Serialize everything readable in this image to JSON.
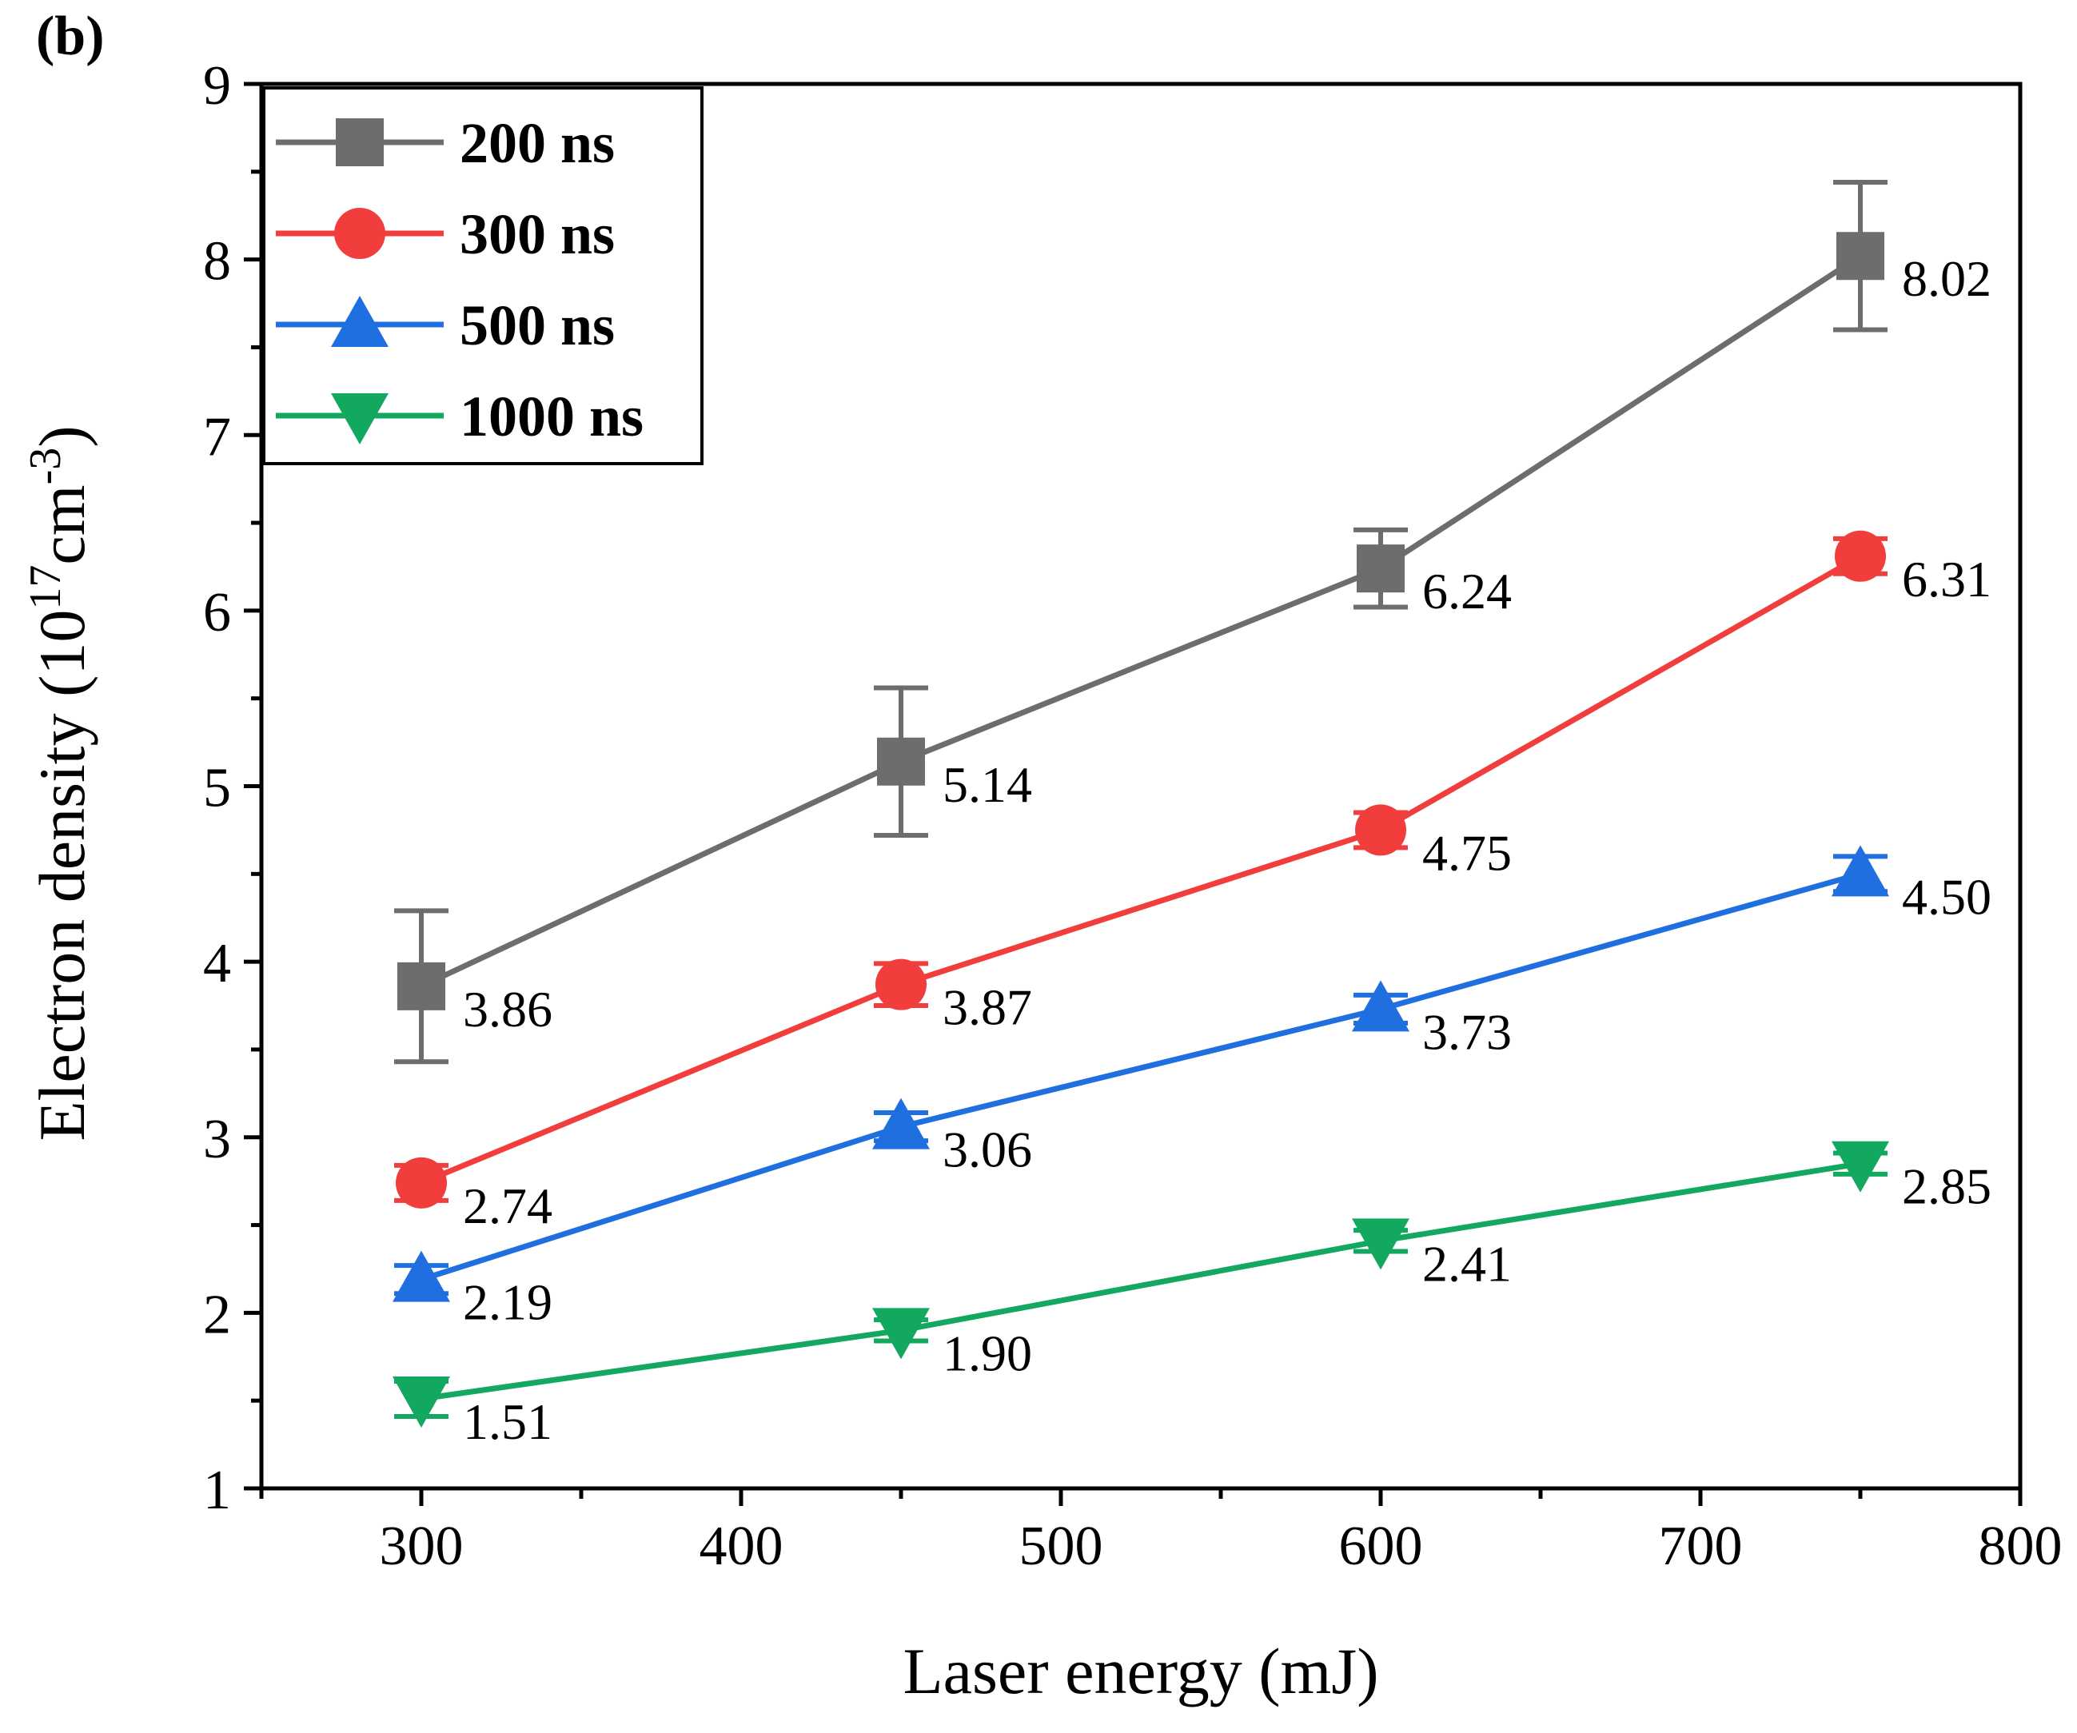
{
  "panel_label": "(b)",
  "chart_data": {
    "type": "line",
    "title": "",
    "xlabel": "Laser energy (mJ)",
    "ylabel_parts": [
      "Electron density (10",
      "17",
      "cm",
      "-3",
      ")"
    ],
    "xlim": [
      250,
      800
    ],
    "ylim": [
      1,
      9
    ],
    "x_ticks": [
      300,
      400,
      500,
      600,
      700,
      800
    ],
    "x_minor_ticks": [
      250,
      350,
      450,
      550,
      650,
      750
    ],
    "y_ticks": [
      1,
      2,
      3,
      4,
      5,
      6,
      7,
      8,
      9
    ],
    "y_minor_ticks": [
      1.5,
      2.5,
      3.5,
      4.5,
      5.5,
      6.5,
      7.5,
      8.5
    ],
    "grid": false,
    "legend_position": "top-left",
    "x": [
      300,
      450,
      600,
      750
    ],
    "series": [
      {
        "name": "200 ns",
        "color": "#6d6d6d",
        "marker": "square",
        "values": [
          3.86,
          5.14,
          6.24,
          8.02
        ],
        "errors": [
          0.43,
          0.42,
          0.22,
          0.42
        ],
        "labels": [
          "3.86",
          "5.14",
          "6.24",
          "8.02"
        ]
      },
      {
        "name": "300 ns",
        "color": "#f23d3d",
        "marker": "circle",
        "values": [
          2.74,
          3.87,
          4.75,
          6.31
        ],
        "errors": [
          0.1,
          0.12,
          0.1,
          0.1
        ],
        "labels": [
          "2.74",
          "3.87",
          "4.75",
          "6.31"
        ]
      },
      {
        "name": "500 ns",
        "color": "#1f6fe0",
        "marker": "triangle-up",
        "values": [
          2.19,
          3.06,
          3.73,
          4.5
        ],
        "errors": [
          0.08,
          0.08,
          0.08,
          0.1
        ],
        "labels": [
          "2.19",
          "3.06",
          "3.73",
          "4.50"
        ]
      },
      {
        "name": "1000 ns",
        "color": "#13a85f",
        "marker": "triangle-down",
        "values": [
          1.51,
          1.9,
          2.41,
          2.85
        ],
        "errors": [
          0.1,
          0.06,
          0.06,
          0.06
        ],
        "labels": [
          "1.51",
          "1.90",
          "2.41",
          "2.85"
        ]
      }
    ]
  }
}
